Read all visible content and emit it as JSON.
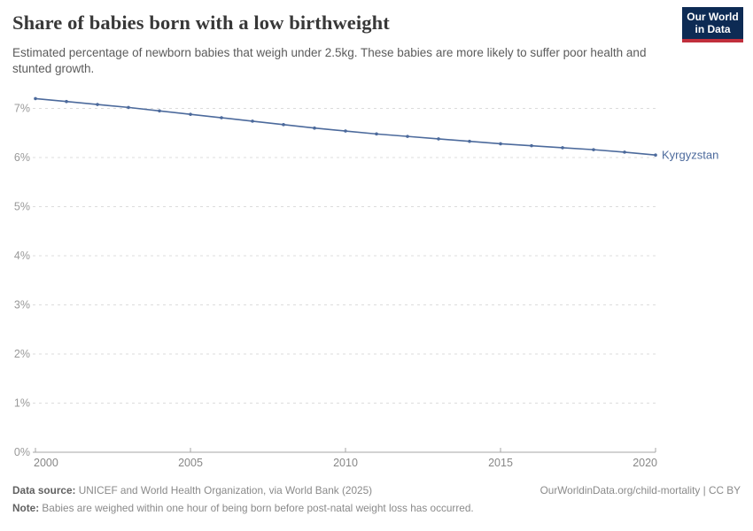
{
  "header": {
    "title": "Share of babies born with a low birthweight",
    "subtitle": "Estimated percentage of newborn babies that weigh under 2.5kg. These babies are more likely to suffer poor health and stunted growth.",
    "logo": {
      "line1": "Our World",
      "line2": "in Data",
      "bg_color": "#0d2b54",
      "accent_color": "#c12f3c"
    }
  },
  "chart_data": {
    "type": "line",
    "title": "Share of babies born with a low birthweight",
    "xlabel": "",
    "ylabel": "",
    "xlim": [
      2000,
      2020
    ],
    "ylim": [
      0,
      7.35
    ],
    "grid": "horizontal-dashed",
    "legend_position": "end-of-line-label",
    "x_ticks": [
      2000,
      2005,
      2010,
      2015,
      2020
    ],
    "y_ticks": [
      {
        "value": 0,
        "label": "0%"
      },
      {
        "value": 1,
        "label": "1%"
      },
      {
        "value": 2,
        "label": "2%"
      },
      {
        "value": 3,
        "label": "3%"
      },
      {
        "value": 4,
        "label": "4%"
      },
      {
        "value": 5,
        "label": "5%"
      },
      {
        "value": 6,
        "label": "6%"
      },
      {
        "value": 7,
        "label": "7%"
      }
    ],
    "x": [
      2000,
      2001,
      2002,
      2003,
      2004,
      2005,
      2006,
      2007,
      2008,
      2009,
      2010,
      2011,
      2012,
      2013,
      2014,
      2015,
      2016,
      2017,
      2018,
      2019,
      2020
    ],
    "series": [
      {
        "name": "Kyrgyzstan",
        "color": "#4C6A9C",
        "values": [
          7.2,
          7.14,
          7.08,
          7.02,
          6.95,
          6.88,
          6.81,
          6.74,
          6.67,
          6.6,
          6.54,
          6.48,
          6.43,
          6.38,
          6.33,
          6.28,
          6.24,
          6.2,
          6.16,
          6.11,
          6.05
        ]
      }
    ],
    "colors": {
      "gridline": "#dcdcdc",
      "axis": "#a5a5a5",
      "y_tick_label": "#999999",
      "x_tick_label": "#878787"
    }
  },
  "footer": {
    "data_source_label": "Data source:",
    "data_source_text": " UNICEF and World Health Organization, via World Bank (2025)",
    "link_text": "OurWorldinData.org/child-mortality | CC BY",
    "note_label": "Note:",
    "note_text": " Babies are weighed within one hour of being born before post-natal weight loss has occurred."
  }
}
